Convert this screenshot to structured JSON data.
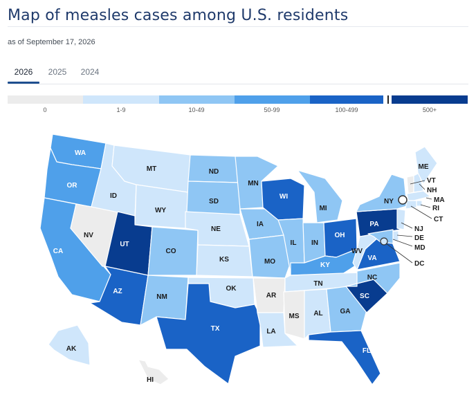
{
  "page": {
    "title": "Map of measles cases among U.S. residents",
    "subtitle": "as of September 17, 2026"
  },
  "tabs": [
    {
      "label": "2026",
      "active": true
    },
    {
      "label": "2025",
      "active": false
    },
    {
      "label": "2024",
      "active": false
    }
  ],
  "legend": {
    "bins": [
      {
        "label": "0",
        "color": "#ececec"
      },
      {
        "label": "1-9",
        "color": "#cfe6fb"
      },
      {
        "label": "10-49",
        "color": "#8fc6f4"
      },
      {
        "label": "50-99",
        "color": "#4fa0ea"
      },
      {
        "label": "100-499",
        "color": "#1a63c6"
      },
      {
        "label": "500+",
        "color": "#083c8f"
      }
    ]
  },
  "map": {
    "states": [
      {
        "abbr": "WA",
        "bin": "50-99"
      },
      {
        "abbr": "OR",
        "bin": "50-99"
      },
      {
        "abbr": "CA",
        "bin": "50-99"
      },
      {
        "abbr": "NV",
        "bin": "0"
      },
      {
        "abbr": "ID",
        "bin": "1-9"
      },
      {
        "abbr": "MT",
        "bin": "1-9"
      },
      {
        "abbr": "WY",
        "bin": "1-9"
      },
      {
        "abbr": "UT",
        "bin": "500+"
      },
      {
        "abbr": "AZ",
        "bin": "100-499"
      },
      {
        "abbr": "CO",
        "bin": "10-49"
      },
      {
        "abbr": "NM",
        "bin": "10-49"
      },
      {
        "abbr": "ND",
        "bin": "10-49"
      },
      {
        "abbr": "SD",
        "bin": "10-49"
      },
      {
        "abbr": "NE",
        "bin": "1-9"
      },
      {
        "abbr": "KS",
        "bin": "1-9"
      },
      {
        "abbr": "OK",
        "bin": "1-9"
      },
      {
        "abbr": "TX",
        "bin": "100-499"
      },
      {
        "abbr": "MN",
        "bin": "10-49"
      },
      {
        "abbr": "IA",
        "bin": "10-49"
      },
      {
        "abbr": "MO",
        "bin": "10-49"
      },
      {
        "abbr": "AR",
        "bin": "0"
      },
      {
        "abbr": "LA",
        "bin": "1-9"
      },
      {
        "abbr": "WI",
        "bin": "100-499"
      },
      {
        "abbr": "IL",
        "bin": "10-49"
      },
      {
        "abbr": "MI",
        "bin": "10-49"
      },
      {
        "abbr": "IN",
        "bin": "10-49"
      },
      {
        "abbr": "OH",
        "bin": "100-499"
      },
      {
        "abbr": "KY",
        "bin": "50-99"
      },
      {
        "abbr": "TN",
        "bin": "1-9"
      },
      {
        "abbr": "MS",
        "bin": "0"
      },
      {
        "abbr": "AL",
        "bin": "1-9"
      },
      {
        "abbr": "GA",
        "bin": "10-49"
      },
      {
        "abbr": "FL",
        "bin": "100-499"
      },
      {
        "abbr": "SC",
        "bin": "500+"
      },
      {
        "abbr": "NC",
        "bin": "10-49"
      },
      {
        "abbr": "VA",
        "bin": "100-499"
      },
      {
        "abbr": "WV",
        "bin": "1-9"
      },
      {
        "abbr": "PA",
        "bin": "500+"
      },
      {
        "abbr": "NY",
        "bin": "10-49"
      },
      {
        "abbr": "VT",
        "bin": "0"
      },
      {
        "abbr": "NH",
        "bin": "1-9"
      },
      {
        "abbr": "ME",
        "bin": "1-9"
      },
      {
        "abbr": "MA",
        "bin": "1-9"
      },
      {
        "abbr": "RI",
        "bin": "1-9"
      },
      {
        "abbr": "CT",
        "bin": "1-9"
      },
      {
        "abbr": "NJ",
        "bin": "1-9"
      },
      {
        "abbr": "DE",
        "bin": "1-9"
      },
      {
        "abbr": "MD",
        "bin": "10-49"
      },
      {
        "abbr": "DC",
        "bin": "1-9"
      },
      {
        "abbr": "AK",
        "bin": "1-9"
      },
      {
        "abbr": "HI",
        "bin": "0"
      }
    ]
  }
}
